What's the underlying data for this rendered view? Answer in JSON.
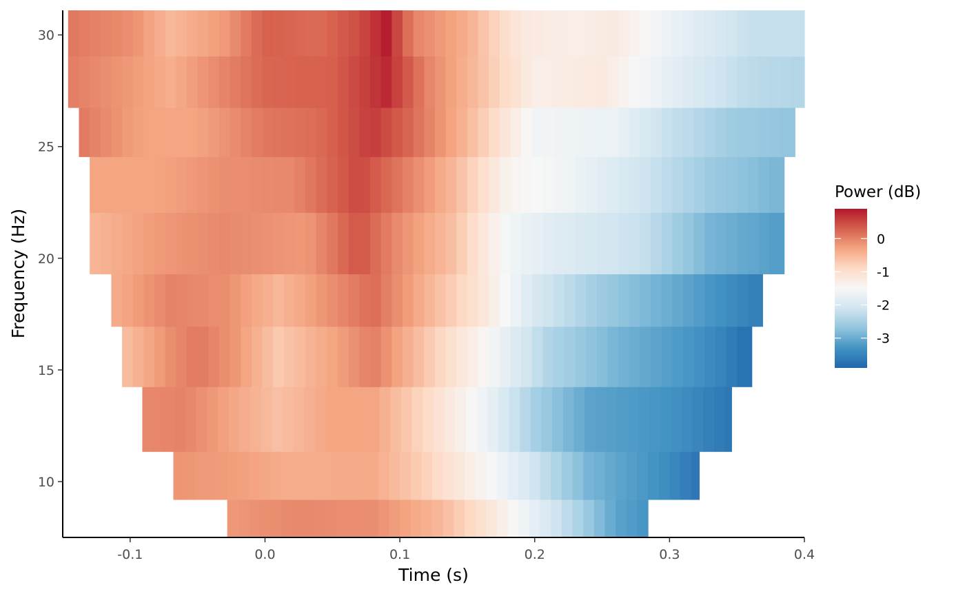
{
  "chart_data": {
    "type": "heatmap",
    "title": "",
    "xlabel": "Time (s)",
    "ylabel": "Frequency (Hz)",
    "xlim": [
      -0.15,
      0.4
    ],
    "ylim": [
      7.5,
      31.1
    ],
    "x_ticks": [
      -0.1,
      0.0,
      0.1,
      0.2,
      0.3,
      0.4
    ],
    "x_tick_labels": [
      "-0.1",
      "0.0",
      "0.1",
      "0.2",
      "0.3",
      "0.4"
    ],
    "y_ticks": [
      10,
      15,
      20,
      25,
      30
    ],
    "y_tick_labels": [
      "10",
      "15",
      "20",
      "25",
      "30"
    ],
    "grid": false,
    "legend": {
      "title": "Power (dB)",
      "position": "right",
      "breaks": [
        0,
        -1,
        -2,
        -3
      ],
      "labels": [
        "0",
        "-1",
        "-2",
        "-3"
      ],
      "limits": [
        -3.9,
        0.9
      ],
      "colors": [
        "#2166ac",
        "#4393c3",
        "#92c5de",
        "#d1e5f0",
        "#f7f7f7",
        "#fddbc7",
        "#f4a582",
        "#d6604d",
        "#b2182b"
      ]
    },
    "time_step": 0.008,
    "rows": [
      {
        "freq": 8.3,
        "t_start": -0.028,
        "t_end": 0.284,
        "knots": [
          [
            -0.028,
            -0.2
          ],
          [
            0.02,
            -0.05
          ],
          [
            0.08,
            -0.1
          ],
          [
            0.13,
            -0.5
          ],
          [
            0.16,
            -1.0
          ],
          [
            0.2,
            -1.8
          ],
          [
            0.23,
            -2.4
          ],
          [
            0.26,
            -3.1
          ],
          [
            0.284,
            -3.3
          ]
        ]
      },
      {
        "freq": 10.1,
        "t_start": -0.068,
        "t_end": 0.322,
        "knots": [
          [
            -0.068,
            -0.15
          ],
          [
            -0.02,
            -0.25
          ],
          [
            0.02,
            -0.4
          ],
          [
            0.08,
            -0.35
          ],
          [
            0.12,
            -0.8
          ],
          [
            0.16,
            -1.4
          ],
          [
            0.2,
            -2.1
          ],
          [
            0.24,
            -2.9
          ],
          [
            0.3,
            -3.4
          ],
          [
            0.322,
            -3.7
          ]
        ]
      },
      {
        "freq": 12.6,
        "t_start": -0.091,
        "t_end": 0.346,
        "knots": [
          [
            -0.091,
            -0.05
          ],
          [
            -0.06,
            0.0
          ],
          [
            -0.02,
            -0.35
          ],
          [
            0.01,
            -0.6
          ],
          [
            0.05,
            -0.3
          ],
          [
            0.08,
            -0.3
          ],
          [
            0.12,
            -0.9
          ],
          [
            0.16,
            -1.6
          ],
          [
            0.2,
            -2.5
          ],
          [
            0.24,
            -3.1
          ],
          [
            0.3,
            -3.3
          ],
          [
            0.346,
            -3.7
          ]
        ]
      },
      {
        "freq": 15.9,
        "t_start": -0.106,
        "t_end": 0.361,
        "knots": [
          [
            -0.106,
            -0.6
          ],
          [
            -0.07,
            -0.1
          ],
          [
            -0.05,
            0.1
          ],
          [
            -0.02,
            -0.2
          ],
          [
            0.01,
            -0.7
          ],
          [
            0.06,
            -0.2
          ],
          [
            0.08,
            0.05
          ],
          [
            0.11,
            -0.5
          ],
          [
            0.16,
            -1.4
          ],
          [
            0.21,
            -2.4
          ],
          [
            0.26,
            -2.9
          ],
          [
            0.32,
            -3.3
          ],
          [
            0.361,
            -3.8
          ]
        ]
      },
      {
        "freq": 18.0,
        "t_start": -0.114,
        "t_end": 0.369,
        "knots": [
          [
            -0.114,
            -0.4
          ],
          [
            -0.07,
            0.0
          ],
          [
            -0.03,
            -0.1
          ],
          [
            0.01,
            -0.5
          ],
          [
            0.05,
            -0.1
          ],
          [
            0.08,
            0.2
          ],
          [
            0.11,
            -0.3
          ],
          [
            0.16,
            -1.1
          ],
          [
            0.2,
            -2.0
          ],
          [
            0.25,
            -2.6
          ],
          [
            0.3,
            -3.0
          ],
          [
            0.369,
            -3.6
          ]
        ]
      },
      {
        "freq": 20.6,
        "t_start": -0.13,
        "t_end": 0.385,
        "knots": [
          [
            -0.13,
            -0.5
          ],
          [
            -0.08,
            -0.2
          ],
          [
            -0.03,
            -0.05
          ],
          [
            0.03,
            -0.2
          ],
          [
            0.07,
            0.4
          ],
          [
            0.1,
            -0.1
          ],
          [
            0.14,
            -0.6
          ],
          [
            0.18,
            -1.6
          ],
          [
            0.22,
            -1.9
          ],
          [
            0.28,
            -2.2
          ],
          [
            0.33,
            -2.9
          ],
          [
            0.385,
            -3.2
          ]
        ]
      },
      {
        "freq": 23.5,
        "t_start": -0.13,
        "t_end": 0.385,
        "knots": [
          [
            -0.13,
            -0.3
          ],
          [
            -0.08,
            -0.3
          ],
          [
            -0.03,
            -0.1
          ],
          [
            0.02,
            -0.05
          ],
          [
            0.07,
            0.5
          ],
          [
            0.1,
            0.1
          ],
          [
            0.14,
            -0.5
          ],
          [
            0.18,
            -1.4
          ],
          [
            0.22,
            -1.6
          ],
          [
            0.28,
            -2.1
          ],
          [
            0.33,
            -2.6
          ],
          [
            0.385,
            -2.9
          ]
        ]
      },
      {
        "freq": 25.6,
        "t_start": -0.138,
        "t_end": 0.393,
        "knots": [
          [
            -0.138,
            0.1
          ],
          [
            -0.09,
            -0.3
          ],
          [
            -0.05,
            -0.3
          ],
          [
            0.0,
            0.1
          ],
          [
            0.04,
            0.2
          ],
          [
            0.08,
            0.6
          ],
          [
            0.11,
            0.2
          ],
          [
            0.15,
            -0.5
          ],
          [
            0.2,
            -1.6
          ],
          [
            0.26,
            -1.7
          ],
          [
            0.3,
            -2.2
          ],
          [
            0.35,
            -2.6
          ],
          [
            0.393,
            -2.7
          ]
        ]
      },
      {
        "freq": 27.9,
        "t_start": -0.146,
        "t_end": 0.4,
        "knots": [
          [
            -0.146,
            0.05
          ],
          [
            -0.1,
            -0.2
          ],
          [
            -0.07,
            -0.4
          ],
          [
            -0.04,
            -0.1
          ],
          [
            0.0,
            0.25
          ],
          [
            0.05,
            0.3
          ],
          [
            0.09,
            0.75
          ],
          [
            0.12,
            0.0
          ],
          [
            0.16,
            -0.6
          ],
          [
            0.2,
            -1.3
          ],
          [
            0.25,
            -1.2
          ],
          [
            0.3,
            -1.8
          ],
          [
            0.36,
            -2.3
          ],
          [
            0.4,
            -2.4
          ]
        ]
      },
      {
        "freq": 30.2,
        "t_start": -0.146,
        "t_end": 0.4,
        "knots": [
          [
            -0.146,
            0.1
          ],
          [
            -0.1,
            -0.1
          ],
          [
            -0.07,
            -0.5
          ],
          [
            -0.03,
            -0.2
          ],
          [
            0.0,
            0.3
          ],
          [
            0.04,
            0.2
          ],
          [
            0.07,
            0.45
          ],
          [
            0.09,
            0.85
          ],
          [
            0.11,
            0.0
          ],
          [
            0.15,
            -0.4
          ],
          [
            0.19,
            -1.2
          ],
          [
            0.23,
            -1.3
          ],
          [
            0.26,
            -1.2
          ],
          [
            0.3,
            -1.7
          ],
          [
            0.36,
            -2.2
          ],
          [
            0.4,
            -2.2
          ]
        ]
      }
    ]
  }
}
